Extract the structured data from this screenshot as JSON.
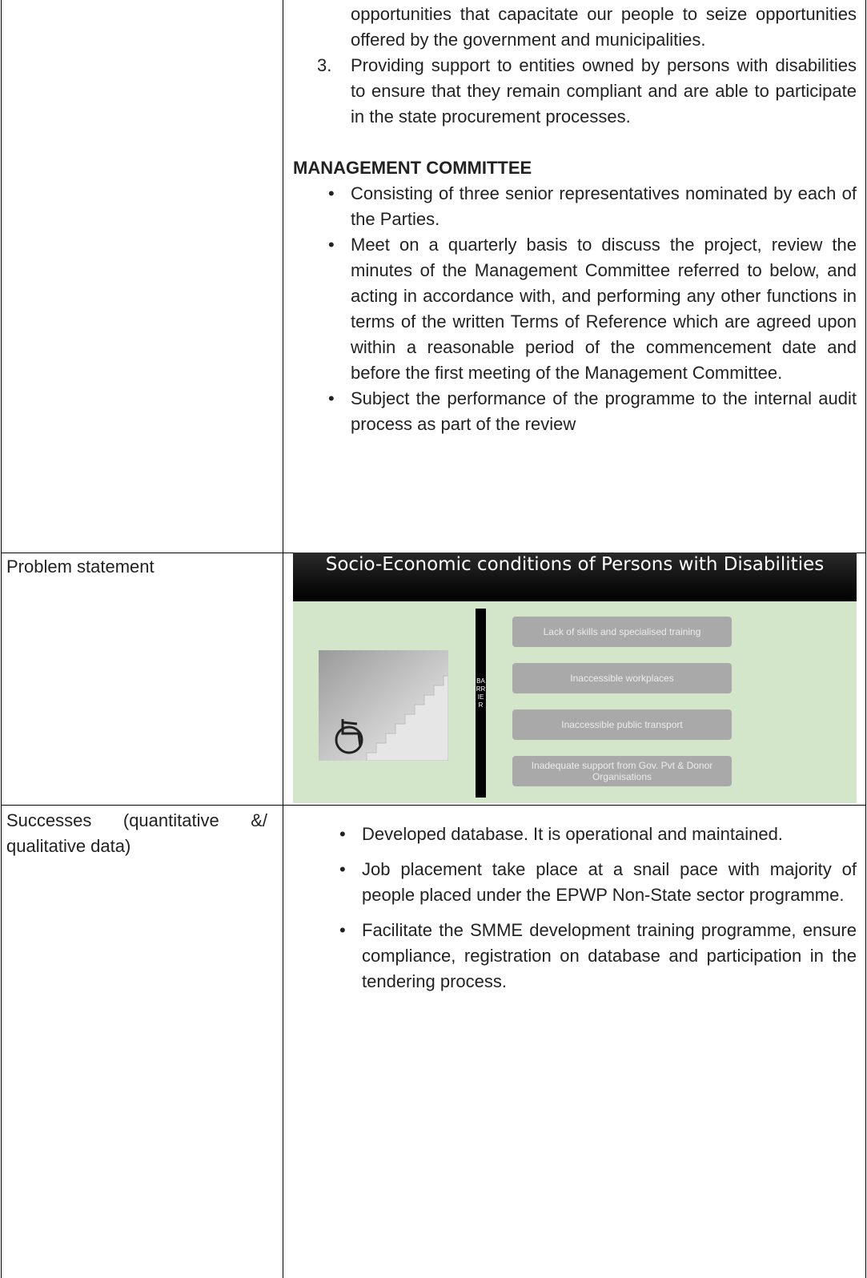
{
  "table": {
    "rows": [
      {
        "continued_text": "opportunities that capacitate our people to seize opportunities offered by the government and municipalities.",
        "numbered_items": [
          {
            "number": "3.",
            "text": "Providing support to entities owned by persons with disabilities to ensure that they remain compliant and are able to participate in the state procurement processes."
          }
        ],
        "heading": "MANAGEMENT COMMITTEE",
        "bullets": [
          "Consisting of three senior representatives nominated by each of the Parties.",
          "Meet on a quarterly basis to discuss the project, review the minutes of the Management Committee referred to below, and acting in accordance with, and performing any other functions in terms of the written Terms of Reference which are agreed upon within a reasonable period of the commencement date and before the first meeting of the Management Committee.",
          "Subject the performance of the programme to the internal audit process as part of the review"
        ]
      },
      {
        "label": "Problem statement",
        "slide": {
          "title": "Socio-Economic conditions of Persons with Disabilities",
          "barrier": "BARRIER",
          "barriers": [
            "Lack of skills and specialised training",
            "Inaccessible workplaces",
            "Inaccessible public transport",
            "Inadequate support from Gov. Pvt & Donor Organisations"
          ]
        }
      },
      {
        "label": "Successes (quantitative &/ qualitative data)",
        "bullets": [
          "Developed database. It is operational and maintained.",
          "Job placement take place at a snail pace with majority of people placed under the EPWP Non-State sector programme.",
          "Facilitate the SMME development training programme, ensure compliance, registration on database and participation in the tendering process."
        ]
      }
    ]
  }
}
